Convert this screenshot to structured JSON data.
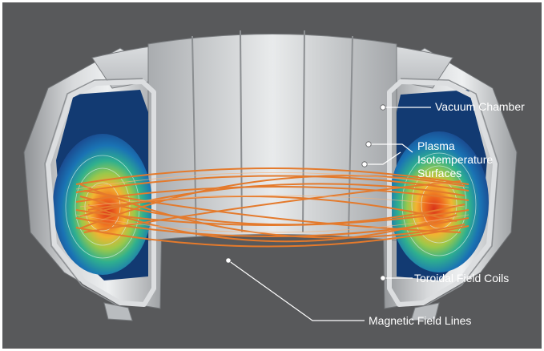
{
  "labels": {
    "vacuum_chamber": "Vacuum Chamber",
    "plasma_line1": "Plasma",
    "plasma_line2": "Isotemperature",
    "plasma_line3": "Surfaces",
    "toroidal_field_coils": "Toroidal Field Coils",
    "magnetic_field_lines": "Magnetic Field Lines"
  },
  "colors": {
    "background": "#58595b",
    "steel": "#c9cbcd",
    "plasma_hot": "#e8431e",
    "plasma_cool": "#1d4f9a",
    "field_lines": "#e47a2c",
    "label_text": "#ffffff"
  }
}
